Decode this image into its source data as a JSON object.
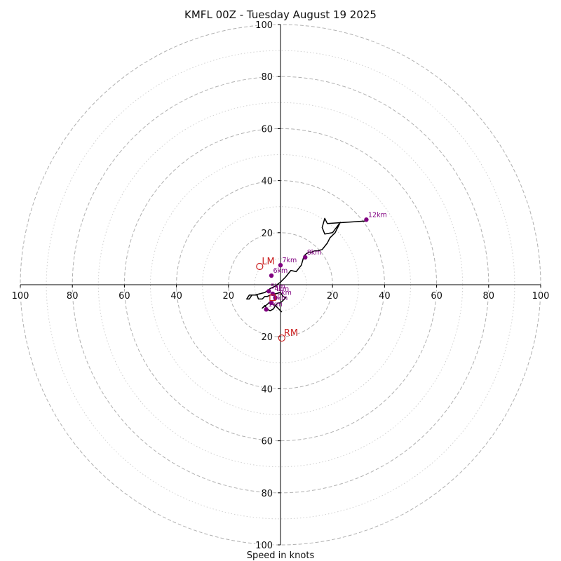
{
  "chart_data": {
    "type": "hodograph",
    "title": "KMFL 00Z - Tuesday August 19 2025",
    "xlabel": "Speed in knots",
    "max_speed": 100,
    "major_rings": [
      20,
      40,
      60,
      80,
      100
    ],
    "minor_rings": [
      10,
      30,
      50,
      70,
      90
    ],
    "tick_values": [
      20,
      40,
      60,
      80,
      100
    ],
    "tick_labels": [
      "20",
      "40",
      "60",
      "80",
      "100"
    ],
    "grid": true,
    "colors": {
      "hodograph_line": "#000000",
      "height_markers": "#800080",
      "storm_motion": "#cc2222",
      "major_ring": "#b0b0b0",
      "minor_ring": "#d0d0d0",
      "axis": "#000000"
    },
    "hodograph": {
      "u": [
        0.5,
        -2,
        -2.5,
        -3,
        -4,
        -5,
        -6,
        -7,
        -5,
        -4,
        -3,
        -2,
        -1,
        0,
        1,
        2,
        1,
        0,
        -2,
        -4,
        -5,
        -6,
        -7,
        -8.5,
        -9,
        -11,
        -12,
        -13,
        -12,
        -10,
        -8,
        -6,
        -4,
        -2,
        0,
        2,
        4,
        6,
        8,
        9,
        10,
        11,
        12,
        13,
        14,
        16,
        18,
        19,
        21,
        23,
        20,
        17,
        16,
        17,
        18,
        33
      ],
      "v": [
        -10.5,
        -8,
        -9,
        -9.5,
        -10,
        -9.5,
        -8,
        -9,
        -7.5,
        -6.5,
        -7.5,
        -8,
        -7,
        -7,
        -6,
        -5,
        -4.5,
        -3,
        -3.5,
        -4,
        -4.5,
        -4.5,
        -5.5,
        -5.5,
        -4,
        -4,
        -5.5,
        -5.5,
        -4,
        -4,
        -3.5,
        -3,
        -1.5,
        -0.5,
        1,
        3,
        5.5,
        5,
        7.5,
        11,
        12,
        12.5,
        12.5,
        13,
        13,
        13.5,
        16,
        18,
        20,
        24,
        20,
        19.5,
        22,
        25.5,
        23.5,
        24.5
      ]
    },
    "height_markers": [
      {
        "label": "12km",
        "u": 33,
        "v": 25
      },
      {
        "label": "8km",
        "u": 9.5,
        "v": 10.5
      },
      {
        "label": "7km",
        "u": 0,
        "v": 7.5
      },
      {
        "label": "6km",
        "u": -3.5,
        "v": 3.5
      },
      {
        "label": "5km",
        "u": -4.5,
        "v": -2.5
      },
      {
        "label": "4km",
        "u": -3,
        "v": -3.5
      },
      {
        "label": "3km",
        "u": -2,
        "v": -5
      },
      {
        "label": "2km",
        "u": -3.5,
        "v": -7
      },
      {
        "label": "1km",
        "u": -5.5,
        "v": -9.5
      }
    ],
    "storm_motion": [
      {
        "label": "LM",
        "u": -8,
        "v": 7
      },
      {
        "label": "RM",
        "u": 0.5,
        "v": -20.5
      }
    ],
    "mean_wind": {
      "u": -3,
      "v": -5
    }
  }
}
